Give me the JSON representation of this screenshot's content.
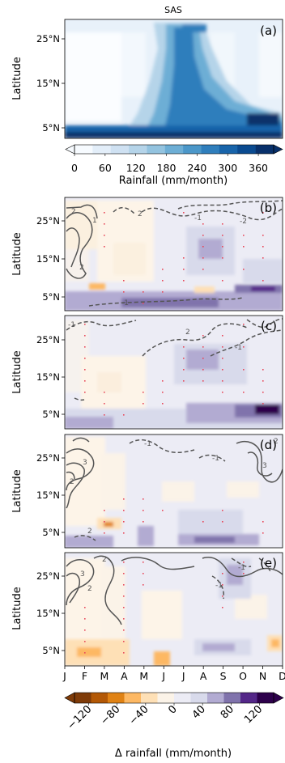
{
  "chart_data": [
    {
      "panel": "(a)",
      "type": "heatmap",
      "title": "SAS",
      "ylabel": "Latitude",
      "yticks": [
        "5°N",
        "15°N",
        "25°N"
      ],
      "ylim": [
        2,
        30
      ],
      "xlim": [
        1,
        12
      ],
      "colorbar": {
        "label": "Rainfall (mm/month)",
        "ticks": [
          "0",
          "60",
          "120",
          "180",
          "240",
          "300",
          "360"
        ],
        "range": [
          0,
          390
        ],
        "colors": [
          "#f7fbff",
          "#e3eef9",
          "#cfe1f2",
          "#b5d4e9",
          "#93c3df",
          "#6daed5",
          "#4b97c9",
          "#2f7ebc",
          "#1864aa",
          "#0a4a90",
          "#08306b"
        ]
      }
    },
    {
      "panel": "(b)",
      "type": "heatmap",
      "ylabel": "Latitude",
      "yticks": [
        "5°N",
        "15°N",
        "25°N"
      ],
      "contour_labels": [
        "1",
        "2",
        "2",
        "-2",
        "-1",
        "-1",
        "2"
      ]
    },
    {
      "panel": "(c)",
      "type": "heatmap",
      "ylabel": "Latitude",
      "yticks": [
        "5°N",
        "15°N",
        "25°N"
      ],
      "contour_labels": [
        "-1",
        "2",
        "-1"
      ]
    },
    {
      "panel": "(d)",
      "type": "heatmap",
      "ylabel": "Latitude",
      "yticks": [
        "5°N",
        "15°N",
        "25°N"
      ],
      "contour_labels": [
        "3",
        "2",
        "-1",
        "-1",
        "3",
        "2",
        "2"
      ]
    },
    {
      "panel": "(e)",
      "type": "heatmap",
      "ylabel": "Latitude",
      "yticks": [
        "5°N",
        "15°N",
        "25°N"
      ],
      "contour_labels": [
        "3",
        "2",
        "2",
        "-1",
        "-1"
      ],
      "x_categories": [
        "J",
        "F",
        "M",
        "A",
        "M",
        "J",
        "J",
        "A",
        "S",
        "O",
        "N",
        "D"
      ],
      "colorbar": {
        "label": "Δ rainfall (mm/month)",
        "ticks": [
          "−120",
          "−80",
          "−40",
          "0",
          "40",
          "80",
          "120"
        ],
        "range": [
          -140,
          140
        ],
        "colors": [
          "#7f3b08",
          "#b35806",
          "#e08214",
          "#fdb863",
          "#fee0b6",
          "#fbf3e8",
          "#ececf5",
          "#d8daeb",
          "#b2abd2",
          "#8073ac",
          "#542788",
          "#2d004b"
        ]
      }
    }
  ]
}
